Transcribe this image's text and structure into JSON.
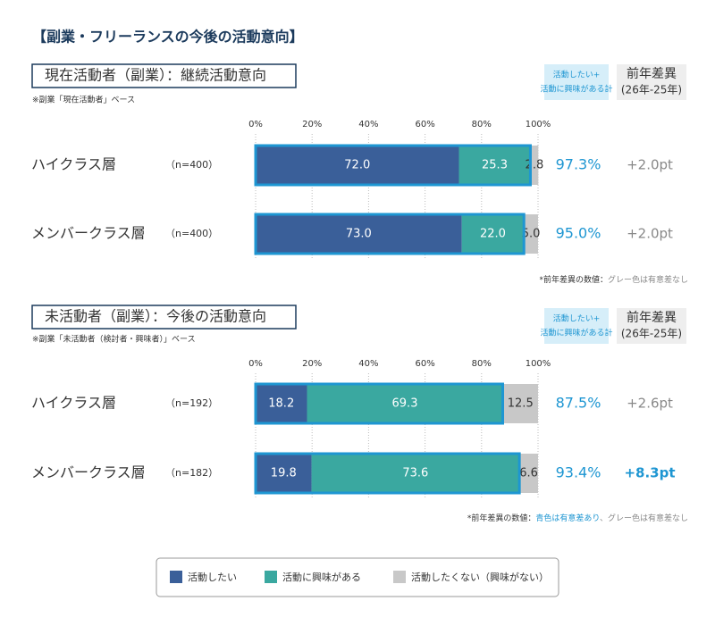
{
  "title": "【副業・フリーランスの今後の活動意向】",
  "chart_data": [
    {
      "type": "bar",
      "orientation": "horizontal",
      "stacked": true,
      "subtitle": "現在活動者（副業）：継続活動意向",
      "note": "※副業「現在活動者」ベース",
      "categories": [
        "ハイクラス層",
        "メンバークラス層"
      ],
      "sample_sizes": [
        "（n=400）",
        "（n=400）"
      ],
      "xlim": [
        0,
        100
      ],
      "xticks": [
        {
          "value": 0,
          "label": "0%"
        },
        {
          "value": 20,
          "label": "20%"
        },
        {
          "value": 40,
          "label": "40%"
        },
        {
          "value": 60,
          "label": "60%"
        },
        {
          "value": 80,
          "label": "80%"
        },
        {
          "value": 100,
          "label": "100%"
        }
      ],
      "grid": true,
      "highlight_color": "#1e96d2",
      "series": [
        {
          "name": "活動したい",
          "color": "#3a5f99",
          "label_color": "#ffffff",
          "values": [
            72.0,
            73.0
          ],
          "value_labels": [
            "72.0",
            "73.0"
          ]
        },
        {
          "name": "活動に興味がある",
          "color": "#3aa8a0",
          "label_color": "#ffffff",
          "values": [
            25.3,
            22.0
          ],
          "value_labels": [
            "25.3",
            "22.0"
          ]
        },
        {
          "name": "活動したくない（興味がない）",
          "color": "#c8c8c8",
          "label_color": "#333333",
          "values": [
            2.8,
            5.0
          ],
          "value_labels": [
            "2.8",
            "5.0"
          ]
        }
      ],
      "totals": {
        "header": [
          "活動したい+",
          "活動に興味がある計"
        ],
        "color": "#1e96d2",
        "values": [
          97.3,
          95.0
        ],
        "value_labels": [
          "97.3%",
          "95.0%"
        ]
      },
      "diffs": {
        "header": [
          "前年差異",
          "(26年-25年)"
        ],
        "color": "#888888",
        "significant_color": "#1e96d2",
        "significant": [
          false,
          false
        ],
        "values": [
          2.0,
          2.0
        ],
        "value_labels": [
          "+2.0pt",
          "+2.0pt"
        ]
      },
      "footnote": [
        {
          "text": "*前年差異の数値：",
          "color": "#333333"
        },
        {
          "text": "グレー色は有意差なし",
          "color": "#888888"
        }
      ]
    },
    {
      "type": "bar",
      "orientation": "horizontal",
      "stacked": true,
      "subtitle": "未活動者（副業）：今後の活動意向",
      "note": "※副業「未活動者（検討者・興味者）」ベース",
      "categories": [
        "ハイクラス層",
        "メンバークラス層"
      ],
      "sample_sizes": [
        "（n=192）",
        "（n=182）"
      ],
      "xlim": [
        0,
        100
      ],
      "xticks": [
        {
          "value": 0,
          "label": "0%"
        },
        {
          "value": 20,
          "label": "20%"
        },
        {
          "value": 40,
          "label": "40%"
        },
        {
          "value": 60,
          "label": "60%"
        },
        {
          "value": 80,
          "label": "80%"
        },
        {
          "value": 100,
          "label": "100%"
        }
      ],
      "grid": true,
      "highlight_color": "#1e96d2",
      "series": [
        {
          "name": "活動したい",
          "color": "#3a5f99",
          "label_color": "#ffffff",
          "values": [
            18.2,
            19.8
          ],
          "value_labels": [
            "18.2",
            "19.8"
          ]
        },
        {
          "name": "活動に興味がある",
          "color": "#3aa8a0",
          "label_color": "#ffffff",
          "values": [
            69.3,
            73.6
          ],
          "value_labels": [
            "69.3",
            "73.6"
          ]
        },
        {
          "name": "活動したくない（興味がない）",
          "color": "#c8c8c8",
          "label_color": "#333333",
          "values": [
            12.5,
            6.6
          ],
          "value_labels": [
            "12.5",
            "6.6"
          ]
        }
      ],
      "totals": {
        "header": [
          "活動したい+",
          "活動に興味がある計"
        ],
        "color": "#1e96d2",
        "values": [
          87.5,
          93.4
        ],
        "value_labels": [
          "87.5%",
          "93.4%"
        ]
      },
      "diffs": {
        "header": [
          "前年差異",
          "(26年-25年)"
        ],
        "color": "#888888",
        "significant_color": "#1e96d2",
        "significant": [
          false,
          true
        ],
        "values": [
          2.6,
          8.3
        ],
        "value_labels": [
          "+2.6pt",
          "+8.3pt"
        ]
      },
      "footnote": [
        {
          "text": "*前年差異の数値：",
          "color": "#333333"
        },
        {
          "text": "青色は有意差あり",
          "color": "#1e96d2"
        },
        {
          "text": "、グレー色は有意差なし",
          "color": "#888888"
        }
      ]
    }
  ]
}
